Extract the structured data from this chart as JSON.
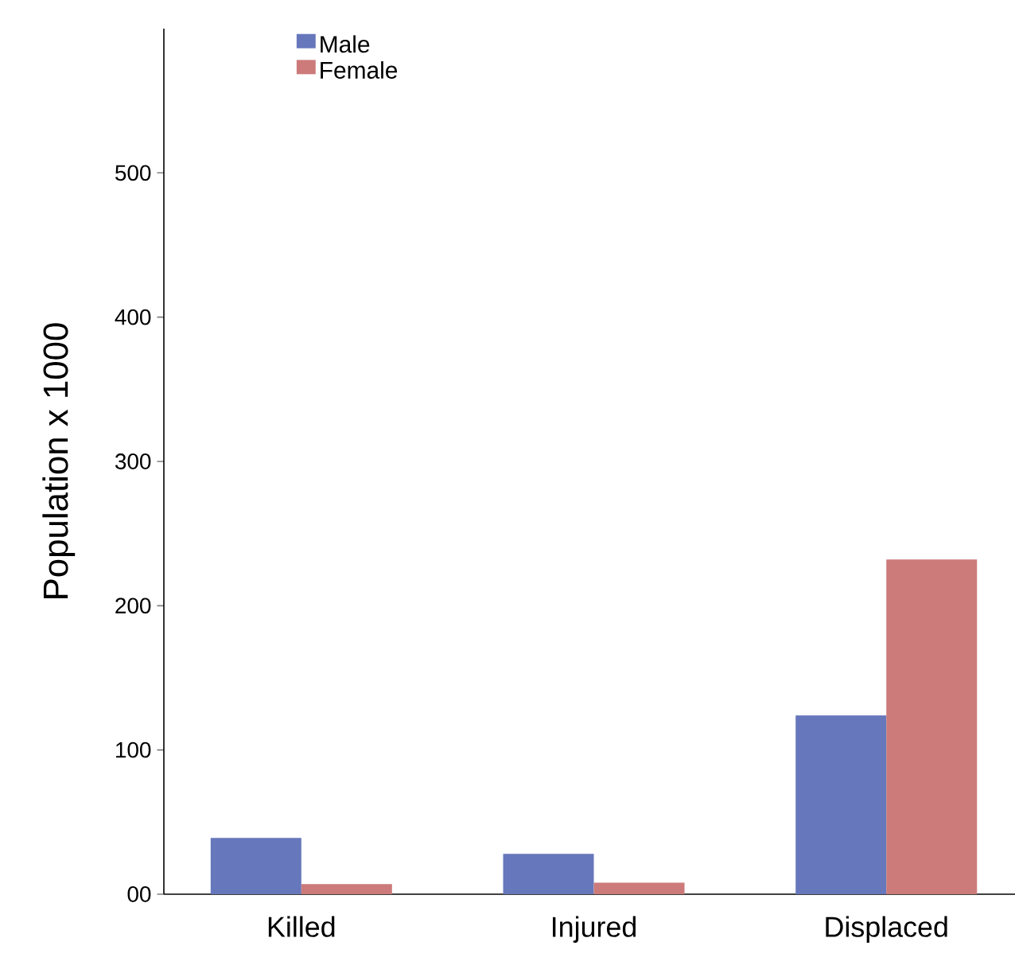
{
  "chart_data": {
    "type": "bar",
    "ylabel": "Population x 1000",
    "categories": [
      "Killed",
      "Injured",
      "Displaced"
    ],
    "series": [
      {
        "name": "Male",
        "color": "#6677bb",
        "values": [
          39,
          28,
          124
        ]
      },
      {
        "name": "Female",
        "color": "#cc7b7a",
        "values": [
          7,
          8,
          232
        ]
      }
    ],
    "ylim": [
      0,
      600
    ],
    "yticks": [
      {
        "value": 0,
        "label": "00"
      },
      100,
      200,
      300,
      400,
      500
    ],
    "grid": false,
    "legend": "top left"
  }
}
